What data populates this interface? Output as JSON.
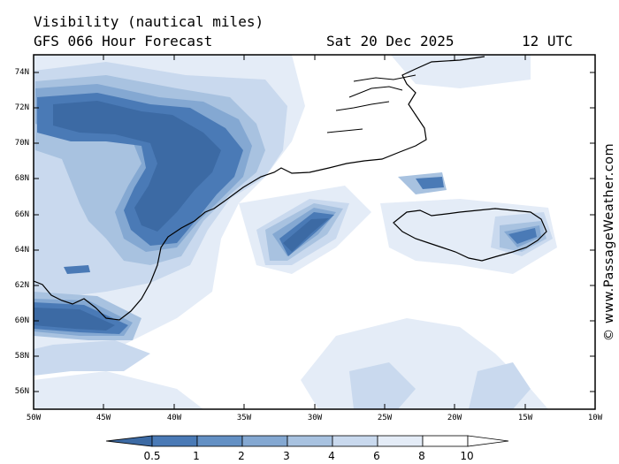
{
  "header": {
    "title": "Visibility (nautical miles)",
    "model": "GFS 066 Hour Forecast",
    "date": "Sat 20 Dec 2025",
    "time": "12 UTC"
  },
  "credit": "© www.PassageWeather.com",
  "map": {
    "lat_labels": [
      "74N",
      "72N",
      "70N",
      "68N",
      "66N",
      "64N",
      "62N",
      "60N",
      "58N",
      "56N"
    ],
    "lon_labels": [
      "50W",
      "45W",
      "40W",
      "35W",
      "30W",
      "25W",
      "20W",
      "15W",
      "10W"
    ],
    "lat_range": [
      55,
      75
    ],
    "lon_range": [
      -50,
      -10
    ]
  },
  "legend": {
    "labels": [
      "0.5",
      "1",
      "2",
      "3",
      "4",
      "6",
      "8",
      "10"
    ],
    "colors": [
      "#3c6aa4",
      "#4a7ab6",
      "#6390c4",
      "#84a8d2",
      "#a8c2e0",
      "#c9d9ee",
      "#e4ecf7",
      "#ffffff"
    ]
  }
}
